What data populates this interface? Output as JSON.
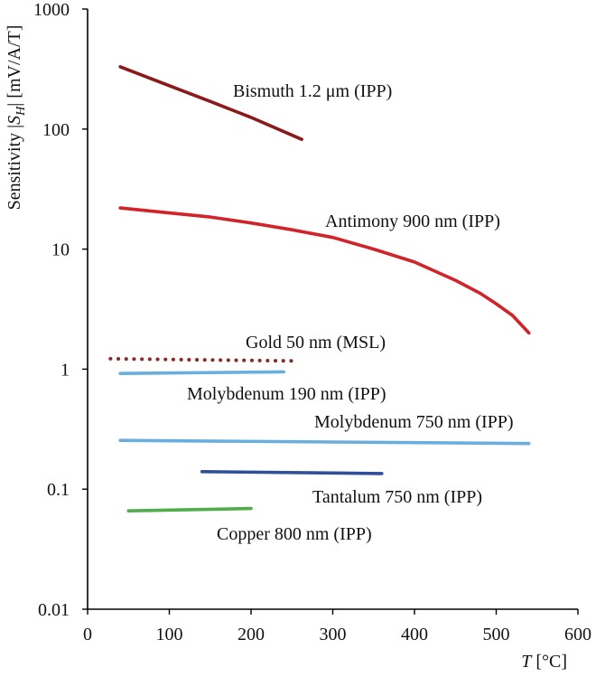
{
  "chart_data": {
    "type": "line",
    "y_scale": "log",
    "xlabel": {
      "var": "T",
      "unit": " [°C]"
    },
    "ylabel": {
      "prefix": "Sensitivity |",
      "var": "S",
      "sub": "H",
      "suffix": "| [mV/A/T]"
    },
    "xlim": [
      0,
      600
    ],
    "ylim": [
      0.01,
      1000
    ],
    "x_ticks": [
      0,
      100,
      200,
      300,
      400,
      500,
      600
    ],
    "x_tick_labels": [
      "0",
      "100",
      "200",
      "300",
      "400",
      "500",
      "600"
    ],
    "y_ticks": [
      0.01,
      0.1,
      1,
      10,
      100,
      1000
    ],
    "y_tick_labels": [
      "0.01",
      "0.1",
      "1",
      "10",
      "100",
      "1000"
    ],
    "series": [
      {
        "name": "Bismuth 1.2 μm (IPP)",
        "color": "#8b1a1a",
        "dash": "solid",
        "x": [
          40,
          100,
          150,
          200,
          262
        ],
        "y": [
          330,
          230,
          170,
          125,
          82
        ]
      },
      {
        "name": "Antimony 900 nm (IPP)",
        "color": "#d0232a",
        "dash": "solid",
        "x": [
          40,
          100,
          150,
          200,
          250,
          300,
          350,
          400,
          450,
          480,
          500,
          520,
          540
        ],
        "y": [
          22,
          20,
          18.5,
          16.5,
          14.5,
          12.5,
          10,
          7.8,
          5.5,
          4.3,
          3.5,
          2.8,
          2.0
        ]
      },
      {
        "name": "Gold 50 nm (MSL)",
        "color": "#8b2a2a",
        "dash": "dotted",
        "x": [
          28,
          250
        ],
        "y": [
          1.22,
          1.17
        ]
      },
      {
        "name": "Molybdenum 190 nm (IPP)",
        "color": "#6aaee0",
        "dash": "solid",
        "x": [
          40,
          240
        ],
        "y": [
          0.92,
          0.95
        ]
      },
      {
        "name": "Molybdenum 750 nm (IPP)",
        "color": "#6aaee0",
        "dash": "solid",
        "x": [
          40,
          540
        ],
        "y": [
          0.255,
          0.24
        ]
      },
      {
        "name": "Tantalum 750 nm (IPP)",
        "color": "#2f4f9a",
        "dash": "solid",
        "x": [
          140,
          360
        ],
        "y": [
          0.14,
          0.135
        ]
      },
      {
        "name": "Copper 800 nm (IPP)",
        "color": "#4fad4a",
        "dash": "solid",
        "x": [
          50,
          200
        ],
        "y": [
          0.066,
          0.069
        ]
      }
    ],
    "annotations": [
      {
        "text": "Bismuth 1.2 μm (IPP)",
        "series": 0
      },
      {
        "text": "Antimony 900 nm (IPP)",
        "series": 1
      },
      {
        "text": "Gold 50 nm (MSL)",
        "series": 2
      },
      {
        "text": "Molybdenum 190 nm (IPP)",
        "series": 3
      },
      {
        "text": "Molybdenum 750 nm (IPP)",
        "series": 4
      },
      {
        "text": "Tantalum 750 nm (IPP)",
        "series": 5
      },
      {
        "text": "Copper 800 nm (IPP)",
        "series": 6
      }
    ]
  }
}
